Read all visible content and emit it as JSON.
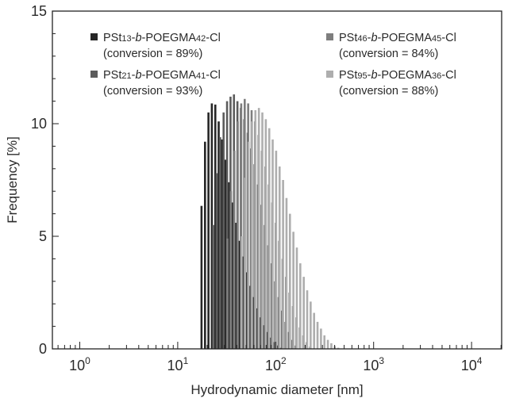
{
  "chart_data": {
    "type": "bar",
    "xscale": "log",
    "xlim": [
      0.5,
      20000
    ],
    "ylim": [
      0,
      15
    ],
    "xlabel": "Hydrodynamic diameter [nm]",
    "ylabel": "Frequency [%]",
    "x_ticks": [
      {
        "value": 1,
        "base": "10",
        "exp": "0"
      },
      {
        "value": 10,
        "base": "10",
        "exp": "1"
      },
      {
        "value": 100,
        "base": "10",
        "exp": "2"
      },
      {
        "value": 1000,
        "base": "10",
        "exp": "3"
      },
      {
        "value": 10000,
        "base": "10",
        "exp": "4"
      }
    ],
    "y_ticks": [
      "0",
      "5",
      "10",
      "15"
    ],
    "grid": false,
    "legend_placement": "top",
    "series": [
      {
        "name": "PSt13-b-POEGMA42-Cl",
        "label_parts": [
          [
            "PSt",
            ""
          ],
          [
            "13",
            "sub"
          ],
          [
            "-",
            ""
          ],
          [
            "b",
            "i"
          ],
          [
            "-POEGMA",
            ""
          ],
          [
            "42",
            "sub"
          ],
          [
            "-Cl",
            ""
          ]
        ],
        "conversion": "(conversion = 89%)",
        "color": "#262626",
        "x": [
          17.5,
          19.0,
          20.6,
          22.3,
          24.2,
          26.2,
          28.4,
          30.8,
          33.4,
          36.2,
          39.3,
          42.6,
          46.2,
          50.1,
          54.3,
          58.9,
          63.9,
          69.3,
          75.2,
          81.5,
          88.4,
          95.9,
          104.0,
          112.8
        ],
        "values": [
          6.35,
          9.2,
          10.5,
          10.9,
          10.85,
          10.1,
          9.3,
          8.4,
          7.4,
          6.5,
          5.6,
          4.8,
          4.1,
          3.4,
          2.8,
          2.3,
          1.8,
          1.4,
          1.05,
          0.75,
          0.5,
          0.3,
          0.15,
          0.05
        ]
      },
      {
        "name": "PSt21-b-POEGMA41-Cl",
        "label_parts": [
          [
            "PSt",
            ""
          ],
          [
            "21",
            "sub"
          ],
          [
            "-",
            ""
          ],
          [
            "b",
            "i"
          ],
          [
            "-POEGMA",
            ""
          ],
          [
            "41",
            "sub"
          ],
          [
            "-Cl",
            ""
          ]
        ],
        "conversion": "(conversion = 93%)",
        "color": "#5c5c5c",
        "x": [
          23.0,
          25.0,
          27.1,
          29.4,
          31.9,
          34.6,
          37.5,
          40.7,
          44.1,
          47.8,
          51.8,
          56.2,
          60.9,
          66.0,
          71.6,
          77.6,
          84.1,
          91.2,
          98.9,
          107.2,
          116.3,
          126.1,
          136.7,
          148.2,
          160.7
        ],
        "values": [
          5.5,
          7.8,
          9.4,
          10.5,
          11.0,
          11.2,
          11.3,
          11.0,
          10.7,
          10.2,
          9.6,
          8.9,
          8.2,
          7.3,
          6.4,
          5.5,
          4.6,
          3.8,
          3.0,
          2.3,
          1.7,
          1.2,
          0.75,
          0.4,
          0.15
        ]
      },
      {
        "name": "PSt46-b-POEGMA45-Cl",
        "label_parts": [
          [
            "PSt",
            ""
          ],
          [
            "46",
            "sub"
          ],
          [
            "-",
            ""
          ],
          [
            "b",
            "i"
          ],
          [
            "-POEGMA",
            ""
          ],
          [
            "45",
            "sub"
          ],
          [
            "-Cl",
            ""
          ]
        ],
        "conversion": "(conversion = 84%)",
        "color": "#7e7e7e",
        "x": [
          32.2,
          34.9,
          37.8,
          41.0,
          44.5,
          48.3,
          52.4,
          56.8,
          61.6,
          66.8,
          72.4,
          78.5,
          85.1,
          92.3,
          100.1,
          108.5,
          117.7,
          127.6,
          138.4,
          150.1,
          162.8,
          176.5,
          191.4,
          207.5,
          225.0
        ],
        "values": [
          4.9,
          7.0,
          8.8,
          10.1,
          10.9,
          11.1,
          10.9,
          10.6,
          10.1,
          9.5,
          8.8,
          8.1,
          7.3,
          6.5,
          5.6,
          4.8,
          4.0,
          3.2,
          2.5,
          1.9,
          1.4,
          0.95,
          0.6,
          0.3,
          0.1
        ]
      },
      {
        "name": "PSt95-b-POEGMA36-Cl",
        "label_parts": [
          [
            "PSt",
            ""
          ],
          [
            "95",
            "sub"
          ],
          [
            "-",
            ""
          ],
          [
            "b",
            "i"
          ],
          [
            "-POEGMA",
            ""
          ],
          [
            "36",
            "sub"
          ],
          [
            "-Cl",
            ""
          ]
        ],
        "conversion": "(conversion = 88%)",
        "color": "#aeaeae",
        "x": [
          44.9,
          48.7,
          52.8,
          57.3,
          62.1,
          67.4,
          73.1,
          79.3,
          86.0,
          93.2,
          101.1,
          109.7,
          119.0,
          129.0,
          139.9,
          151.7,
          164.5,
          178.4,
          193.5,
          209.8,
          227.5,
          246.7,
          267.5,
          290.1,
          314.6,
          341.2,
          370.0,
          401.3,
          435.2
        ],
        "values": [
          5.0,
          7.6,
          9.2,
          10.1,
          10.6,
          10.7,
          10.5,
          10.2,
          9.8,
          9.3,
          8.8,
          8.1,
          7.5,
          6.7,
          6.0,
          5.2,
          4.5,
          3.8,
          3.2,
          2.6,
          2.1,
          1.6,
          1.2,
          0.9,
          0.6,
          0.4,
          0.25,
          0.12,
          0.05
        ]
      }
    ]
  }
}
